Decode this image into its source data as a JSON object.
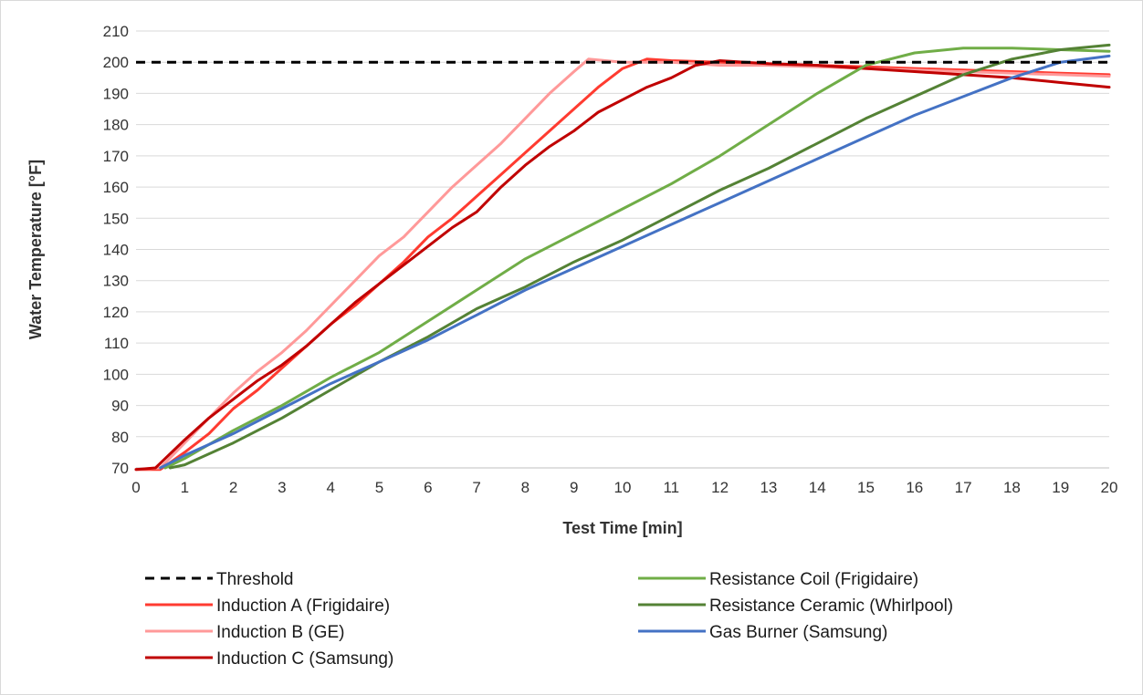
{
  "chart_data": {
    "type": "line",
    "title": "",
    "xlabel": "Test Time [min]",
    "ylabel": "Water Temperature [°F]",
    "xlim": [
      0,
      20
    ],
    "ylim": [
      70,
      210
    ],
    "x_ticks": [
      0,
      1,
      2,
      3,
      4,
      5,
      6,
      7,
      8,
      9,
      10,
      11,
      12,
      13,
      14,
      15,
      16,
      17,
      18,
      19,
      20
    ],
    "y_ticks": [
      70,
      80,
      90,
      100,
      110,
      120,
      130,
      140,
      150,
      160,
      170,
      180,
      190,
      200,
      210
    ],
    "grid": "horizontal",
    "legend_position": "bottom",
    "series": [
      {
        "name": "Threshold",
        "color": "#000000",
        "dashed": true,
        "x": [
          0,
          20
        ],
        "y": [
          200,
          200
        ]
      },
      {
        "name": "Induction A (Frigidaire)",
        "color": "#ff3b30",
        "dashed": false,
        "x": [
          0,
          0.5,
          1,
          1.5,
          2,
          2.5,
          3,
          3.5,
          4,
          4.5,
          5,
          5.5,
          6,
          6.5,
          7,
          7.5,
          8,
          8.5,
          9,
          9.5,
          10,
          10.5,
          11,
          12,
          13,
          14,
          15,
          16,
          17,
          18,
          19,
          20
        ],
        "y": [
          69.5,
          69.5,
          75,
          81,
          89,
          95,
          102,
          109,
          116,
          122,
          129,
          136,
          144,
          150,
          157,
          164,
          171,
          178,
          185,
          192,
          198,
          201,
          200.5,
          200,
          199.5,
          199,
          198.5,
          198,
          197.5,
          197,
          196.5,
          196
        ]
      },
      {
        "name": "Induction B (GE)",
        "color": "#ff9999",
        "dashed": false,
        "x": [
          0,
          0.5,
          1,
          1.5,
          2,
          2.5,
          3,
          3.5,
          4,
          4.5,
          5,
          5.5,
          6,
          6.5,
          7,
          7.5,
          8,
          8.5,
          9,
          9.3,
          10,
          11,
          12,
          13,
          14,
          15,
          16,
          17,
          18,
          19,
          20
        ],
        "y": [
          69.5,
          70,
          78,
          86,
          94,
          101,
          107,
          114,
          122,
          130,
          138,
          144,
          152,
          160,
          167,
          174,
          182,
          190,
          197,
          201,
          200,
          200,
          199,
          199,
          198.5,
          198,
          197.5,
          197,
          196.5,
          196,
          195.5
        ]
      },
      {
        "name": "Induction C (Samsung)",
        "color": "#c00000",
        "dashed": false,
        "x": [
          0,
          0.4,
          1,
          1.5,
          2,
          2.5,
          3,
          3.5,
          4,
          4.5,
          5,
          5.5,
          6,
          6.5,
          7,
          7.5,
          8,
          8.5,
          9,
          9.5,
          10,
          10.5,
          11,
          11.5,
          12,
          13,
          14,
          15,
          16,
          17,
          18,
          19,
          20
        ],
        "y": [
          69.5,
          70,
          79,
          86,
          92,
          98,
          103,
          109,
          116,
          123,
          129,
          135,
          141,
          147,
          152,
          160,
          167,
          173,
          178,
          184,
          188,
          192,
          195,
          199,
          200.5,
          199.5,
          199,
          198,
          197,
          196,
          195,
          193.5,
          192
        ]
      },
      {
        "name": "Resistance Coil (Frigidaire)",
        "color": "#70ad47",
        "dashed": false,
        "x": [
          0.6,
          1,
          2,
          3,
          4,
          5,
          6,
          7,
          8,
          9,
          10,
          11,
          12,
          13,
          14,
          15,
          16,
          17,
          18,
          19,
          20
        ],
        "y": [
          70,
          73,
          82,
          90,
          99,
          107,
          117,
          127,
          137,
          145,
          153,
          161,
          170,
          180,
          190,
          199,
          203,
          204.5,
          204.5,
          204,
          203.5
        ]
      },
      {
        "name": "Resistance Ceramic (Whirlpool)",
        "color": "#548235",
        "dashed": false,
        "x": [
          0.7,
          1,
          2,
          3,
          4,
          5,
          6,
          7,
          8,
          9,
          10,
          11,
          12,
          13,
          14,
          15,
          16,
          17,
          18,
          19,
          20
        ],
        "y": [
          70,
          71,
          78,
          86,
          95,
          104,
          112,
          121,
          128,
          136,
          143,
          151,
          159,
          166,
          174,
          182,
          189,
          196,
          201,
          204,
          205.5
        ]
      },
      {
        "name": "Gas Burner (Samsung)",
        "color": "#4472c4",
        "dashed": false,
        "x": [
          0.5,
          1,
          2,
          3,
          4,
          5,
          6,
          7,
          8,
          9,
          10,
          11,
          12,
          13,
          14,
          15,
          16,
          17,
          18,
          19,
          20
        ],
        "y": [
          70,
          74,
          81,
          89,
          97,
          104,
          111,
          119,
          127,
          134,
          141,
          148,
          155,
          162,
          169,
          176,
          183,
          189,
          195,
          200,
          202
        ]
      }
    ]
  }
}
